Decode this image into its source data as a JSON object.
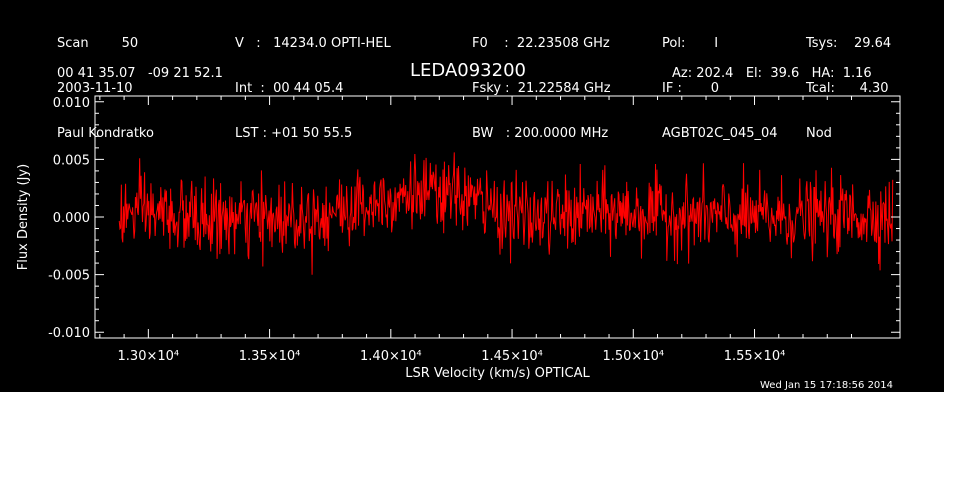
{
  "header": {
    "col1": [
      "Scan        50",
      "2003-11-10",
      "Paul Kondratko"
    ],
    "col2": [
      "V   :   14234.0 OPTI-HEL",
      "Int  :  00 44 05.4",
      "LST : +01 50 55.5"
    ],
    "col3": [
      "F0    :  22.23508 GHz",
      "Fsky :  21.22584 GHz",
      "BW   : 200.0000 MHz"
    ],
    "col4": [
      "Pol:       I",
      "IF :       0",
      "AGBT02C_045_04"
    ],
    "col5": [
      "Tsys:    29.64",
      "Tcal:      4.30",
      "Nod"
    ],
    "coords": "00 41 35.07   -09 21 52.1",
    "source": "LEDA093200",
    "azelha": "Az: 202.4   El:  39.6   HA:  1.16"
  },
  "timestamp": "Wed Jan 15 17:18:56 2014",
  "chart_data": {
    "type": "line",
    "xlabel": "LSR Velocity (km/s) OPTICAL",
    "ylabel": "Flux Density (Jy)",
    "xlim": [
      12780,
      16100
    ],
    "ylim": [
      -0.0105,
      0.0105
    ],
    "xticks": [
      {
        "value": 13000,
        "label": "1.30×10⁴"
      },
      {
        "value": 13500,
        "label": "1.35×10⁴"
      },
      {
        "value": 14000,
        "label": "1.40×10⁴"
      },
      {
        "value": 14500,
        "label": "1.45×10⁴"
      },
      {
        "value": 15000,
        "label": "1.50×10⁴"
      },
      {
        "value": 15500,
        "label": "1.55×10⁴"
      }
    ],
    "yticks": [
      {
        "value": 0.01,
        "label": "0.010"
      },
      {
        "value": 0.005,
        "label": "0.005"
      },
      {
        "value": 0.0,
        "label": "0.000"
      },
      {
        "value": -0.005,
        "label": "-0.005"
      },
      {
        "value": -0.01,
        "label": "-0.010"
      }
    ],
    "series_color": "#ff0000",
    "axis_color": "#ffffff",
    "grid": false,
    "series": [
      {
        "x_start": 12880,
        "x_end": 16070,
        "envelope_x": [
          12880,
          13000,
          13200,
          13400,
          13600,
          13800,
          14000,
          14100,
          14200,
          14300,
          14400,
          14600,
          14800,
          15000,
          15200,
          15400,
          15600,
          16070
        ],
        "envelope_mean": [
          0.0002,
          0.0004,
          -0.0002,
          -0.0003,
          0.0,
          0.0005,
          0.0018,
          0.0022,
          0.0016,
          0.002,
          0.0008,
          -0.0002,
          0.0003,
          0.0004,
          0.0001,
          -0.0001,
          0.0,
          0.0002
        ],
        "noise_sigma": 0.0016,
        "sample_count": 1100
      }
    ]
  }
}
